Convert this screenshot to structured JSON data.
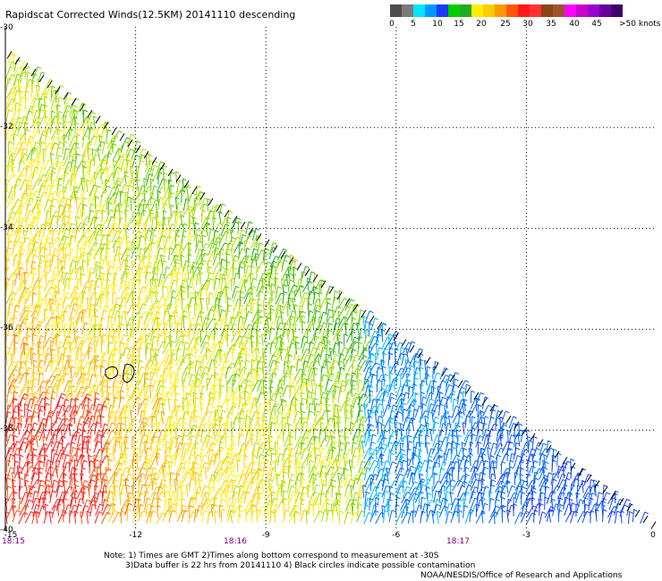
{
  "title": "Rapidscat Corrected Winds(12.5KM) 20141110 descending",
  "colorbar": {
    "colors": [
      "#4d4d4d",
      "#7a7a7a",
      "#00e5ff",
      "#0099ff",
      "#1a3cff",
      "#00cc00",
      "#22aa22",
      "#ffee00",
      "#ffcc00",
      "#ff9900",
      "#ff5500",
      "#ff1a1a",
      "#ff3333",
      "#8b4513",
      "#a0522d",
      "#ff00ff",
      "#cc00cc",
      "#9900cc",
      "#660099",
      "#3a006b"
    ],
    "tick_labels": [
      "0",
      "5",
      "10",
      "15",
      "20",
      "25",
      "30",
      "35",
      "40",
      "45",
      ">50 knots"
    ]
  },
  "y_labels": [
    "-30",
    "-32",
    "-34",
    "-36",
    "-38",
    "-40"
  ],
  "x_labels": [
    "-15",
    "-12",
    "-9",
    "-6",
    "-3",
    "0"
  ],
  "time_labels": [
    "18:15",
    "18:16",
    "18:17"
  ],
  "notes": {
    "line1": "Note: 1) Times are GMT 2)Times along bottom correspond to measurement at -30S",
    "line2": "3)Data buffer is 22 hrs from 20141110 4) Black circles indicate possible contamination",
    "credit": "NOAA/NESDIS/Office of Research and Applications"
  },
  "map": {
    "lon_range": [
      -15,
      0
    ],
    "lat_range": [
      -40,
      -30
    ],
    "swath": "descending diagonal from upper-left to lower-right",
    "wind_speed_color_scale_knots": [
      0,
      50
    ]
  }
}
